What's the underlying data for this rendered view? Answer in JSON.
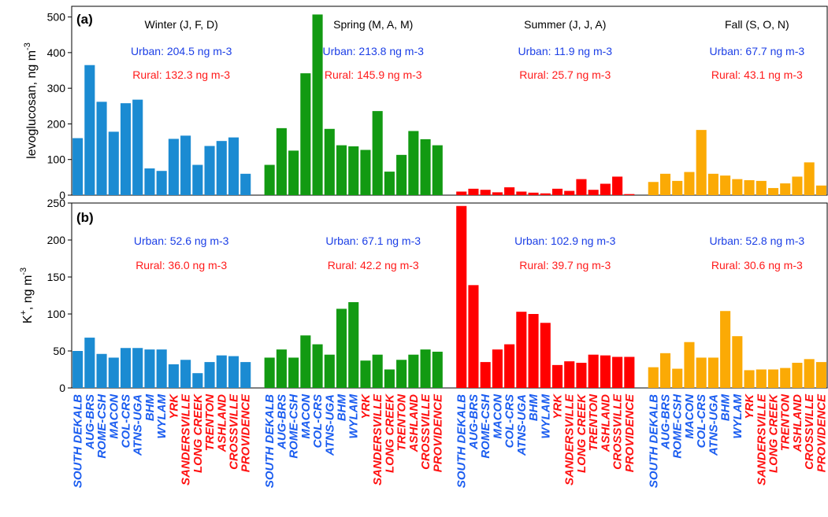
{
  "chart_data": [
    {
      "type": "bar",
      "label": "(a)",
      "ylabel": [
        {
          "text": "levoglucosan, ng m"
        },
        {
          "text": "-3",
          "sup": true
        }
      ],
      "ylim": [
        0,
        530
      ],
      "yticks": [
        0,
        100,
        200,
        300,
        400,
        500
      ],
      "annotation_colors": [
        "#1c3fe6",
        "#ff1a1a"
      ],
      "series": [
        {
          "name": "Winter (J, F, D)",
          "color": "#1b8bd2",
          "annotations": [
            "Urban: 204.5 ng m-3",
            "Rural: 132.3 ng m-3"
          ],
          "values": [
            160,
            365,
            262,
            178,
            258,
            268,
            75,
            68,
            158,
            167,
            85,
            138,
            152,
            162,
            60
          ]
        },
        {
          "name": "Spring (M, A, M)",
          "color": "#129a12",
          "annotations": [
            "Urban: 213.8 ng m-3",
            "Rural: 145.9 ng m-3"
          ],
          "values": [
            85,
            188,
            125,
            342,
            507,
            186,
            140,
            137,
            127,
            236,
            66,
            113,
            180,
            157,
            140
          ]
        },
        {
          "name": "Summer (J, J, A)",
          "color": "#ff0000",
          "annotations": [
            "Urban: 11.9 ng m-3",
            "Rural: 25.7 ng m-3"
          ],
          "values": [
            10,
            18,
            15,
            8,
            22,
            10,
            7,
            5,
            18,
            12,
            45,
            15,
            32,
            52,
            3
          ]
        },
        {
          "name": "Fall (S, O, N)",
          "color": "#fbaa05",
          "annotations": [
            "Urban: 67.7 ng m-3",
            "Rural: 43.1 ng m-3"
          ],
          "values": [
            37,
            60,
            40,
            65,
            183,
            60,
            55,
            45,
            42,
            40,
            20,
            33,
            52,
            92,
            27
          ]
        }
      ]
    },
    {
      "type": "bar",
      "label": "(b)",
      "ylabel": [
        {
          "text": "K"
        },
        {
          "text": "+",
          "sup": true
        },
        {
          "text": ", ng m"
        },
        {
          "text": "-3",
          "sup": true
        }
      ],
      "ylim": [
        0,
        250
      ],
      "yticks": [
        0,
        50,
        100,
        150,
        200,
        250
      ],
      "annotation_colors": [
        "#1c3fe6",
        "#ff1a1a"
      ],
      "categories": [
        "SOUTH DEKALB",
        "AUG-BRS",
        "ROME-CSH",
        "MACON",
        "COL-CRS",
        "ATNS-UGA",
        "BHM",
        "WYLAM",
        "YRK",
        "SANDERSVILLE",
        "LONG CREEK",
        "TRENTON",
        "ASHLAND",
        "CROSSVILLE",
        "PROVIDENCE"
      ],
      "category_colors": [
        "#1a5cf0",
        "#1a5cf0",
        "#1a5cf0",
        "#1a5cf0",
        "#1a5cf0",
        "#1a5cf0",
        "#1a5cf0",
        "#1a5cf0",
        "#ff1010",
        "#ff1010",
        "#ff1010",
        "#ff1010",
        "#ff1010",
        "#ff1010",
        "#ff1010"
      ],
      "series": [
        {
          "color": "#1b8bd2",
          "annotations": [
            "Urban: 52.6 ng m-3",
            "Rural: 36.0 ng m-3"
          ],
          "values": [
            50,
            68,
            46,
            41,
            54,
            54,
            52,
            52,
            32,
            38,
            20,
            35,
            44,
            43,
            35
          ]
        },
        {
          "color": "#129a12",
          "annotations": [
            "Urban: 67.1 ng m-3",
            "Rural: 42.2 ng m-3"
          ],
          "values": [
            41,
            52,
            41,
            71,
            59,
            45,
            107,
            116,
            37,
            45,
            25,
            38,
            45,
            52,
            49
          ]
        },
        {
          "color": "#ff0000",
          "annotations": [
            "Urban: 102.9 ng m-3",
            "Rural: 39.7 ng m-3"
          ],
          "values": [
            246,
            139,
            35,
            52,
            59,
            103,
            100,
            88,
            31,
            36,
            34,
            45,
            44,
            42,
            42
          ]
        },
        {
          "color": "#fbaa05",
          "annotations": [
            "Urban: 52.8 ng m-3",
            "Rural: 30.6 ng m-3"
          ],
          "values": [
            28,
            47,
            26,
            62,
            41,
            41,
            104,
            70,
            24,
            25,
            25,
            27,
            34,
            39,
            35
          ]
        }
      ]
    }
  ]
}
